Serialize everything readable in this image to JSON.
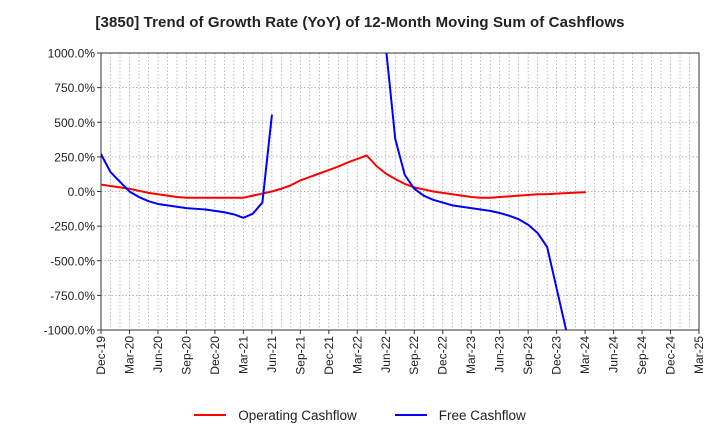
{
  "chart_data": {
    "type": "line",
    "title": "[3850]  Trend of Growth Rate (YoY) of 12-Month Moving Sum of Cashflows",
    "xlabel": "",
    "ylabel": "",
    "x": [
      "Dec-19",
      "Jan-20",
      "Feb-20",
      "Mar-20",
      "Apr-20",
      "May-20",
      "Jun-20",
      "Jul-20",
      "Aug-20",
      "Sep-20",
      "Oct-20",
      "Nov-20",
      "Dec-20",
      "Jan-21",
      "Feb-21",
      "Mar-21",
      "Apr-21",
      "May-21",
      "Jun-21",
      "Jul-21",
      "Aug-21",
      "Sep-21",
      "Oct-21",
      "Nov-21",
      "Dec-21",
      "Jan-22",
      "Feb-22",
      "Mar-22",
      "Apr-22",
      "May-22",
      "Jun-22",
      "Jul-22",
      "Aug-22",
      "Sep-22",
      "Oct-22",
      "Nov-22",
      "Dec-22",
      "Jan-23",
      "Feb-23",
      "Mar-23",
      "Apr-23",
      "May-23",
      "Jun-23",
      "Jul-23",
      "Aug-23",
      "Sep-23",
      "Oct-23",
      "Nov-23",
      "Dec-23",
      "Jan-24",
      "Feb-24",
      "Mar-24",
      "Apr-24",
      "May-24",
      "Jun-24",
      "Jul-24",
      "Aug-24",
      "Sep-24",
      "Oct-24",
      "Nov-24",
      "Dec-24",
      "Jan-25",
      "Feb-25",
      "Mar-25"
    ],
    "x_tick_labels": [
      "Dec-19",
      "Mar-20",
      "Jun-20",
      "Sep-20",
      "Dec-20",
      "Mar-21",
      "Jun-21",
      "Sep-21",
      "Dec-21",
      "Mar-22",
      "Jun-22",
      "Sep-22",
      "Dec-22",
      "Mar-23",
      "Jun-23",
      "Sep-23",
      "Dec-23",
      "Mar-24",
      "Jun-24",
      "Sep-24",
      "Dec-24",
      "Mar-25"
    ],
    "y_tick_labels": [
      "1000.0%",
      "750.0%",
      "500.0%",
      "250.0%",
      "0.0%",
      "-250.0%",
      "-500.0%",
      "-750.0%",
      "-1000.0%"
    ],
    "y_ticks": [
      1000,
      750,
      500,
      250,
      0,
      -250,
      -500,
      -750,
      -1000
    ],
    "ylim": [
      -1000,
      1000
    ],
    "grid": true,
    "legend_position": "bottom-center",
    "series": [
      {
        "name": "Operating Cashflow",
        "color": "#ff0000",
        "values": [
          50,
          40,
          30,
          20,
          5,
          -10,
          -20,
          -30,
          -40,
          -45,
          -45,
          -45,
          -45,
          -45,
          -45,
          -45,
          -30,
          -15,
          0,
          20,
          45,
          80,
          105,
          130,
          155,
          180,
          210,
          235,
          260,
          185,
          130,
          90,
          55,
          30,
          15,
          0,
          -10,
          -20,
          -30,
          -40,
          -45,
          -45,
          -40,
          -35,
          -30,
          -25,
          -20,
          -20,
          -15,
          -12,
          -8,
          -5,
          null,
          null,
          null,
          null,
          null,
          null,
          null,
          null,
          null,
          null,
          null,
          null
        ]
      },
      {
        "name": "Free Cashflow",
        "color": "#0000ff",
        "values": [
          270,
          140,
          70,
          0,
          -40,
          -70,
          -90,
          -100,
          -110,
          -120,
          -125,
          -130,
          -140,
          -150,
          -165,
          -190,
          -160,
          -80,
          550,
          null,
          null,
          null,
          null,
          null,
          null,
          null,
          null,
          null,
          null,
          null,
          1050,
          380,
          120,
          20,
          -30,
          -60,
          -80,
          -100,
          -110,
          -120,
          -130,
          -140,
          -155,
          -175,
          -200,
          -240,
          -300,
          -400,
          -700,
          -1000,
          null,
          null,
          null,
          null,
          null,
          null,
          null,
          null,
          null,
          null,
          null,
          null,
          null,
          null
        ]
      }
    ]
  }
}
